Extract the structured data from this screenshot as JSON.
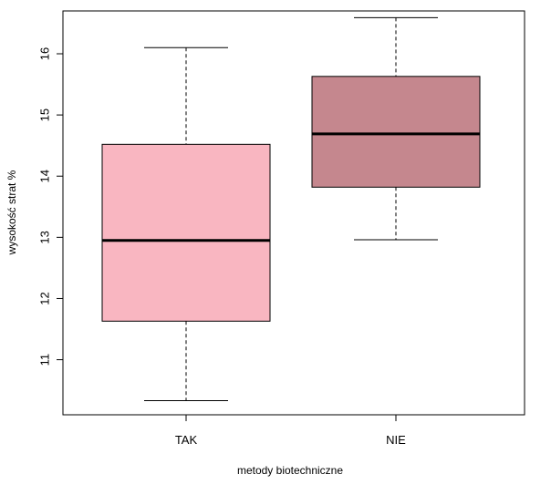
{
  "chart_data": {
    "type": "boxplot",
    "title": "",
    "xlabel": "metody biotechniczne",
    "ylabel": "wysokość strat %",
    "categories": [
      "TAK",
      "NIE"
    ],
    "boxes": [
      {
        "category": "TAK",
        "whisker_low": 10.33,
        "q1": 11.63,
        "median": 12.95,
        "q3": 14.52,
        "whisker_high": 16.1,
        "color": "#F9B6C1"
      },
      {
        "category": "NIE",
        "whisker_low": 12.96,
        "q1": 13.82,
        "median": 14.69,
        "q3": 15.63,
        "whisker_high": 16.59,
        "color": "#C5878E"
      }
    ],
    "ylim": [
      10.1,
      16.7
    ],
    "yticks": [
      11,
      12,
      13,
      14,
      15,
      16
    ],
    "grid": false,
    "legend": "none"
  }
}
